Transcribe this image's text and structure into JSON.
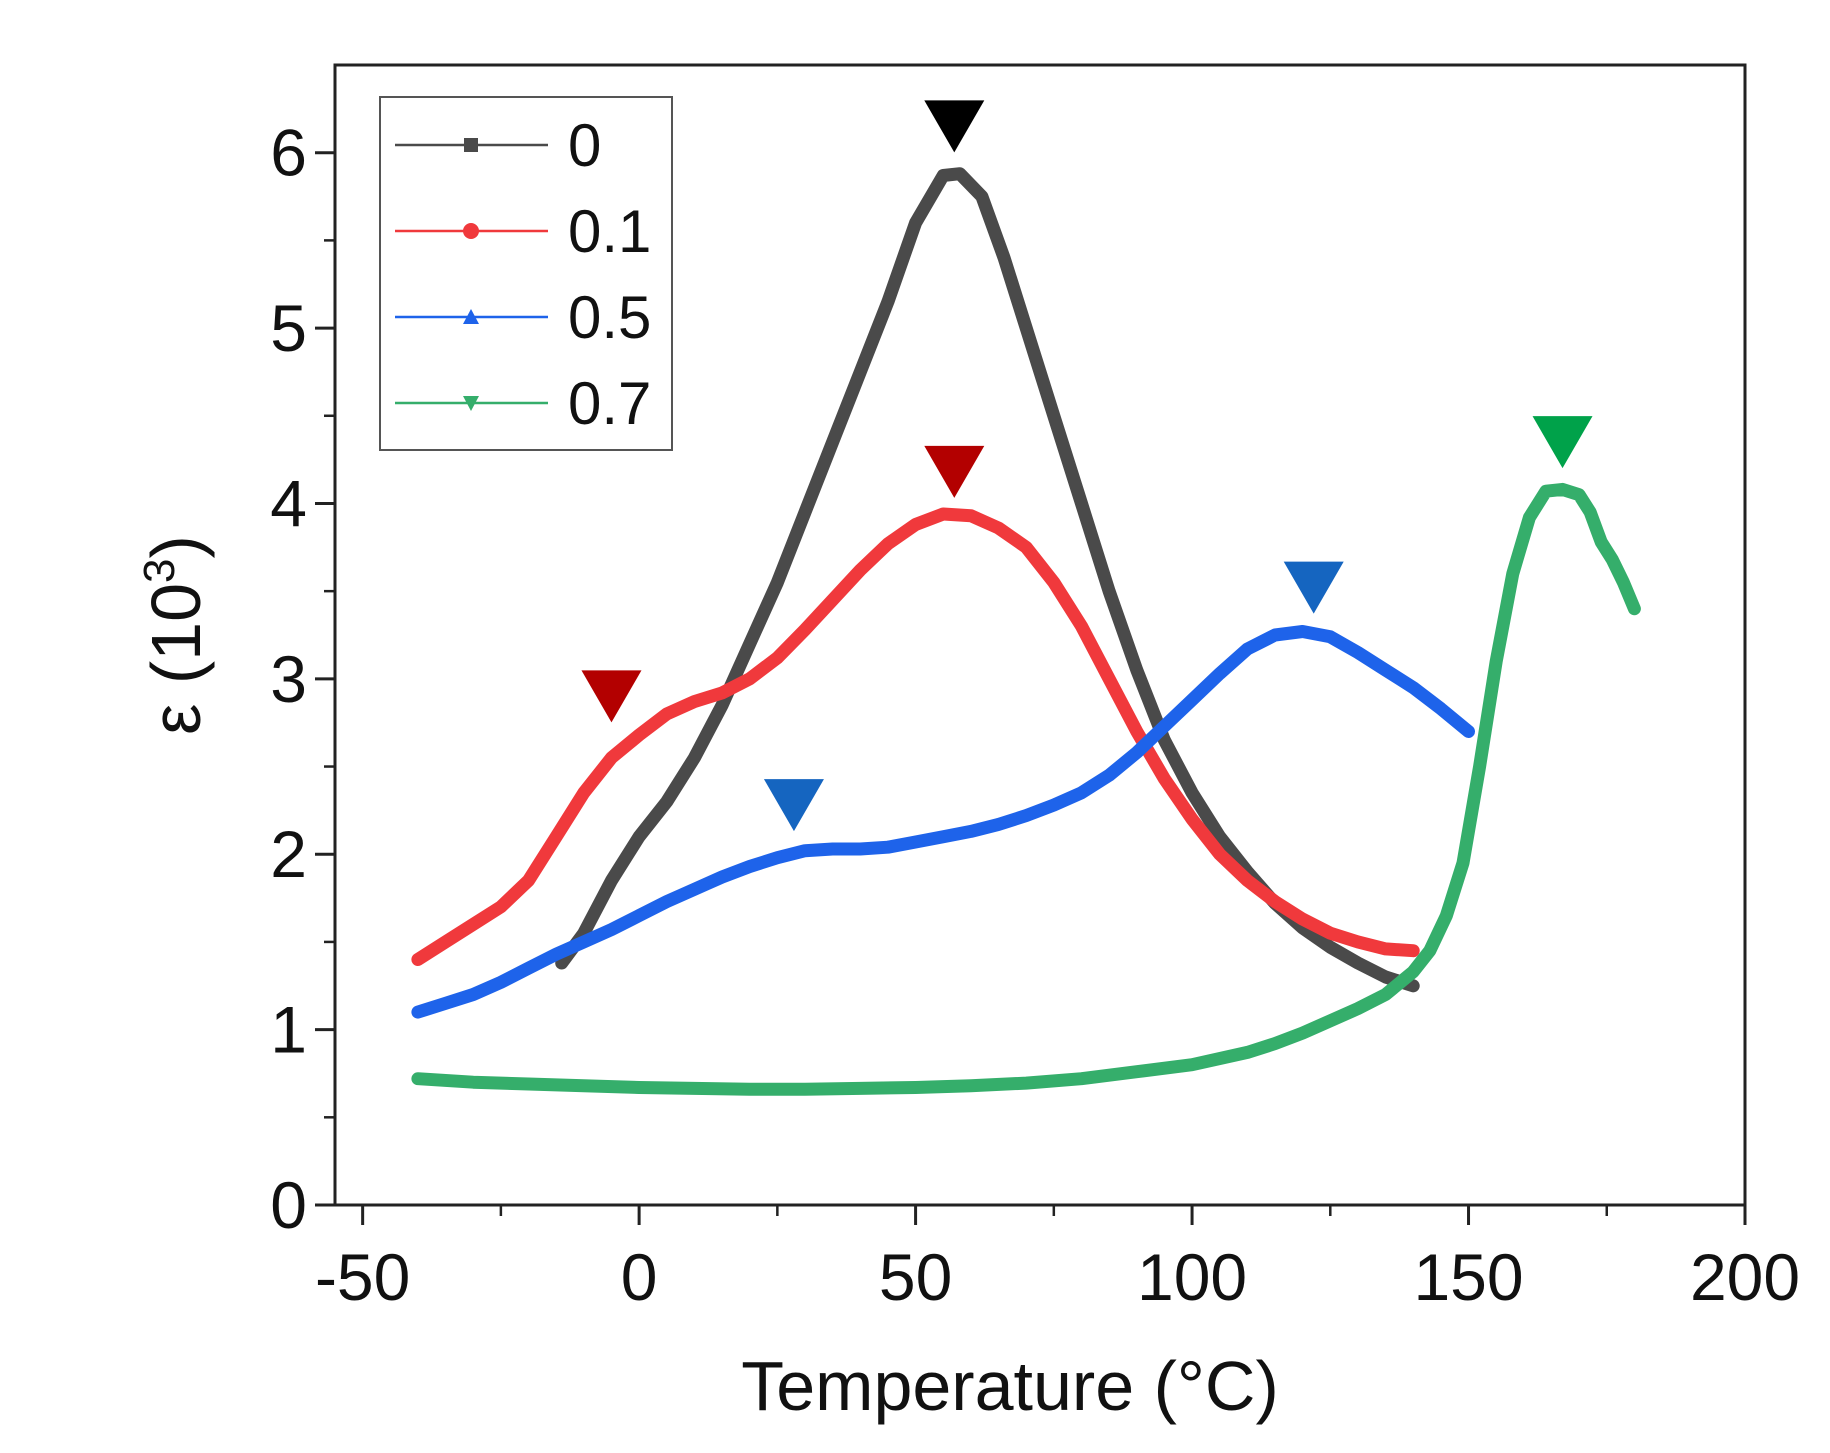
{
  "chart_data": {
    "type": "line",
    "title": "",
    "xlabel": "Temperature (°C)",
    "ylabel_main": "ε (10",
    "ylabel_sup": "3",
    "ylabel_close": ")",
    "xlim": [
      -55,
      200
    ],
    "ylim": [
      0,
      6.5
    ],
    "x_ticks": [
      -50,
      0,
      50,
      100,
      150,
      200
    ],
    "x_tick_labels": [
      "-50",
      "0",
      "50",
      "100",
      "150",
      "200"
    ],
    "y_ticks": [
      0,
      1,
      2,
      3,
      4,
      5,
      6
    ],
    "y_tick_labels": [
      "0",
      "1",
      "2",
      "3",
      "4",
      "5",
      "6"
    ],
    "legend_position": "top-left",
    "series": [
      {
        "name": "0",
        "color": "#4a4a4a",
        "marker": "square",
        "points": [
          [
            -14,
            1.38
          ],
          [
            -10,
            1.55
          ],
          [
            -5,
            1.85
          ],
          [
            0,
            2.1
          ],
          [
            5,
            2.3
          ],
          [
            10,
            2.55
          ],
          [
            15,
            2.85
          ],
          [
            20,
            3.2
          ],
          [
            25,
            3.55
          ],
          [
            30,
            3.95
          ],
          [
            35,
            4.35
          ],
          [
            40,
            4.75
          ],
          [
            45,
            5.15
          ],
          [
            50,
            5.6
          ],
          [
            55,
            5.87
          ],
          [
            58,
            5.88
          ],
          [
            62,
            5.75
          ],
          [
            66,
            5.4
          ],
          [
            70,
            5.0
          ],
          [
            75,
            4.5
          ],
          [
            80,
            4.0
          ],
          [
            85,
            3.5
          ],
          [
            90,
            3.05
          ],
          [
            95,
            2.65
          ],
          [
            100,
            2.35
          ],
          [
            105,
            2.1
          ],
          [
            110,
            1.9
          ],
          [
            115,
            1.72
          ],
          [
            120,
            1.58
          ],
          [
            125,
            1.47
          ],
          [
            130,
            1.38
          ],
          [
            135,
            1.3
          ],
          [
            140,
            1.25
          ]
        ]
      },
      {
        "name": "0.1",
        "color": "#f0393c",
        "marker": "circle",
        "points": [
          [
            -40,
            1.4
          ],
          [
            -35,
            1.5
          ],
          [
            -30,
            1.6
          ],
          [
            -25,
            1.7
          ],
          [
            -20,
            1.85
          ],
          [
            -15,
            2.1
          ],
          [
            -10,
            2.35
          ],
          [
            -5,
            2.55
          ],
          [
            0,
            2.68
          ],
          [
            5,
            2.8
          ],
          [
            10,
            2.87
          ],
          [
            15,
            2.92
          ],
          [
            20,
            3.0
          ],
          [
            25,
            3.12
          ],
          [
            30,
            3.28
          ],
          [
            35,
            3.45
          ],
          [
            40,
            3.62
          ],
          [
            45,
            3.77
          ],
          [
            50,
            3.88
          ],
          [
            55,
            3.94
          ],
          [
            60,
            3.93
          ],
          [
            65,
            3.86
          ],
          [
            70,
            3.75
          ],
          [
            75,
            3.55
          ],
          [
            80,
            3.3
          ],
          [
            85,
            3.0
          ],
          [
            90,
            2.7
          ],
          [
            95,
            2.43
          ],
          [
            100,
            2.2
          ],
          [
            105,
            2.0
          ],
          [
            110,
            1.85
          ],
          [
            115,
            1.73
          ],
          [
            120,
            1.63
          ],
          [
            125,
            1.55
          ],
          [
            130,
            1.5
          ],
          [
            135,
            1.46
          ],
          [
            140,
            1.45
          ]
        ]
      },
      {
        "name": "0.5",
        "color": "#1e63ea",
        "marker": "triangle-up",
        "points": [
          [
            -40,
            1.1
          ],
          [
            -35,
            1.15
          ],
          [
            -30,
            1.2
          ],
          [
            -25,
            1.27
          ],
          [
            -20,
            1.35
          ],
          [
            -15,
            1.43
          ],
          [
            -10,
            1.5
          ],
          [
            -5,
            1.57
          ],
          [
            0,
            1.65
          ],
          [
            5,
            1.73
          ],
          [
            10,
            1.8
          ],
          [
            15,
            1.87
          ],
          [
            20,
            1.93
          ],
          [
            25,
            1.98
          ],
          [
            30,
            2.02
          ],
          [
            35,
            2.03
          ],
          [
            40,
            2.03
          ],
          [
            45,
            2.04
          ],
          [
            50,
            2.07
          ],
          [
            55,
            2.1
          ],
          [
            60,
            2.13
          ],
          [
            65,
            2.17
          ],
          [
            70,
            2.22
          ],
          [
            75,
            2.28
          ],
          [
            80,
            2.35
          ],
          [
            85,
            2.45
          ],
          [
            90,
            2.58
          ],
          [
            95,
            2.73
          ],
          [
            100,
            2.88
          ],
          [
            105,
            3.03
          ],
          [
            110,
            3.17
          ],
          [
            115,
            3.25
          ],
          [
            120,
            3.27
          ],
          [
            125,
            3.24
          ],
          [
            130,
            3.15
          ],
          [
            135,
            3.05
          ],
          [
            140,
            2.95
          ],
          [
            145,
            2.83
          ],
          [
            150,
            2.7
          ]
        ]
      },
      {
        "name": "0.7",
        "color": "#35ae6b",
        "marker": "triangle-down",
        "points": [
          [
            -40,
            0.72
          ],
          [
            -30,
            0.7
          ],
          [
            -20,
            0.69
          ],
          [
            -10,
            0.68
          ],
          [
            0,
            0.67
          ],
          [
            10,
            0.665
          ],
          [
            20,
            0.66
          ],
          [
            30,
            0.66
          ],
          [
            40,
            0.665
          ],
          [
            50,
            0.67
          ],
          [
            60,
            0.68
          ],
          [
            70,
            0.695
          ],
          [
            80,
            0.72
          ],
          [
            90,
            0.76
          ],
          [
            100,
            0.8
          ],
          [
            110,
            0.87
          ],
          [
            115,
            0.92
          ],
          [
            120,
            0.98
          ],
          [
            125,
            1.05
          ],
          [
            130,
            1.12
          ],
          [
            135,
            1.2
          ],
          [
            140,
            1.33
          ],
          [
            143,
            1.45
          ],
          [
            146,
            1.65
          ],
          [
            149,
            1.95
          ],
          [
            152,
            2.5
          ],
          [
            155,
            3.1
          ],
          [
            158,
            3.6
          ],
          [
            161,
            3.92
          ],
          [
            164,
            4.07
          ],
          [
            167,
            4.08
          ],
          [
            170,
            4.05
          ],
          [
            172,
            3.95
          ],
          [
            174,
            3.78
          ],
          [
            176,
            3.68
          ],
          [
            178,
            3.55
          ],
          [
            180,
            3.4
          ]
        ]
      }
    ],
    "peak_markers": [
      {
        "series": "0",
        "x": 57,
        "y": 6.15,
        "color": "#000000"
      },
      {
        "series": "0.1",
        "x": 57,
        "y": 4.18,
        "color": "#b30000"
      },
      {
        "series": "0.1",
        "x": -5,
        "y": 2.9,
        "color": "#b30000"
      },
      {
        "series": "0.5",
        "x": 28,
        "y": 2.28,
        "color": "#1565c0"
      },
      {
        "series": "0.5",
        "x": 122,
        "y": 3.52,
        "color": "#1565c0"
      },
      {
        "series": "0.7",
        "x": 167,
        "y": 4.35,
        "color": "#00a24a"
      }
    ]
  }
}
